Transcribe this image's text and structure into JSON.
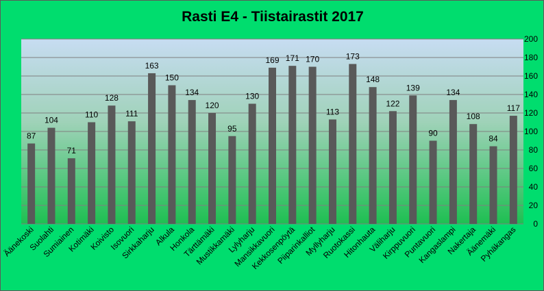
{
  "chart_data": {
    "type": "bar",
    "title": "Rasti E4 - Tiistairastit 2017",
    "xlabel": "",
    "ylabel": "",
    "ylim": [
      0,
      200
    ],
    "yticks": [
      0,
      20,
      40,
      60,
      80,
      100,
      120,
      140,
      160,
      180,
      200
    ],
    "y_axis_side": "right",
    "grid": true,
    "legend": "none",
    "categories": [
      "Äänekoski",
      "Suolahti",
      "Sumiainen",
      "Kotimäki",
      "Koivisto",
      "Isovuori",
      "Sirkkaharju",
      "Alkula",
      "Honkola",
      "Tärttämäki",
      "Mustikkamäki",
      "Lylyharju",
      "Mansikkavuori",
      "Kekkosenpöytä",
      "Piiparinkalliot",
      "Myllyharju",
      "Ruotokassi",
      "Hitonhauta",
      "Väliharju",
      "Kirppuvuori",
      "Puntavuori",
      "Kangaslampi",
      "Nakertaja",
      "Äänemäki",
      "Pyhäkangas"
    ],
    "values": [
      87,
      104,
      71,
      110,
      128,
      111,
      163,
      150,
      134,
      120,
      95,
      130,
      169,
      171,
      170,
      113,
      173,
      148,
      122,
      139,
      90,
      134,
      108,
      84,
      117
    ],
    "colors": {
      "background": "#00dd6e",
      "bar": "#595959",
      "plot_top": "#c7dcf2",
      "plot_bottom": "#1ebf52",
      "gridline": "#7f7f7f"
    }
  }
}
